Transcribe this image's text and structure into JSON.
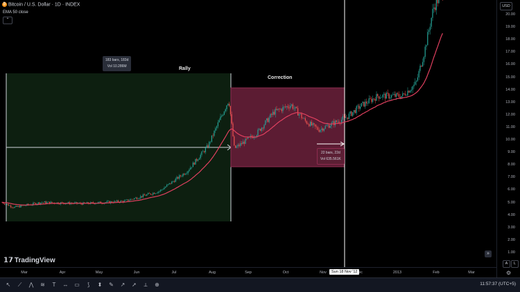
{
  "header": {
    "title": "Bitcoin / U.S. Dollar · 1D · INDEX",
    "coin_glyph": "₿",
    "indicator": "EMA 50 close",
    "collapse_glyph": "⌃"
  },
  "currency": "USD",
  "annotations": {
    "rally_label": "Rally",
    "correction_label": "Correction",
    "rally_bars": "183 bars, 183d",
    "rally_vol": "Vol 10.286M",
    "correction_bars": "22 bars, 22d",
    "correction_vol": "Vol 635.561K"
  },
  "price_axis": [
    "20.00",
    "19.00",
    "18.00",
    "17.00",
    "16.00",
    "15.00",
    "14.00",
    "13.00",
    "12.00",
    "11.00",
    "10.00",
    "9.00",
    "8.00",
    "7.00",
    "6.00",
    "5.00",
    "4.00",
    "3.00",
    "2.00",
    "1.00"
  ],
  "time_axis": [
    "Mar",
    "Apr",
    "May",
    "Jun",
    "Jul",
    "Aug",
    "Sep",
    "Oct",
    "Nov",
    "Dec",
    "2013",
    "Feb",
    "Mar"
  ],
  "cursor_time": "Sun 18 Nov '12",
  "logo": "TradingView",
  "axis_buttons": [
    "A",
    "L"
  ],
  "clock": "11:57:37 (UTC+5)",
  "toolbar_icons": [
    "cursor-icon",
    "trend-line-icon",
    "pitchfork-icon",
    "fib-icon",
    "text-icon",
    "measure-icon",
    "rectangle-icon",
    "pattern-icon",
    "position-icon",
    "brush-icon",
    "projection-icon",
    "arrow-icon",
    "ruler-icon",
    "zoom-icon"
  ],
  "colors": {
    "background": "#000000",
    "rally_fill": "#0d1f10",
    "correction_fill": "#5c1c33",
    "ema_line": "#e0405f",
    "candle_up": "#26a69a",
    "candle_down": "#ef5350"
  }
}
